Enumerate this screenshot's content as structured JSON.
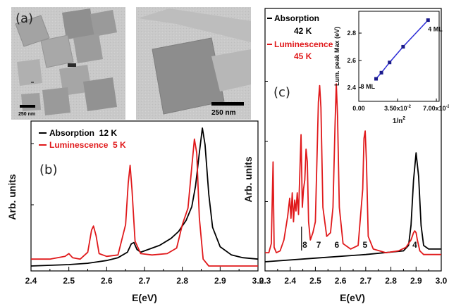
{
  "panel_a": {
    "label": "(a)",
    "scale_left": "250 nm",
    "scale_right": "250 nm"
  },
  "chart_data": [
    {
      "id": "b",
      "type": "line",
      "panel_label": "(b)",
      "xlabel": "E(eV)",
      "ylabel": "Arb. units",
      "xlim": [
        2.4,
        3.0
      ],
      "xticks": [
        "2.4",
        "2.5",
        "2.6",
        "2.7",
        "2.8",
        "2.9",
        "3.0"
      ],
      "series": [
        {
          "name": "Absorption  12 K",
          "color": "#000000",
          "x": [
            2.4,
            2.5,
            2.55,
            2.6,
            2.63,
            2.655,
            2.665,
            2.672,
            2.68,
            2.69,
            2.71,
            2.74,
            2.77,
            2.79,
            2.81,
            2.825,
            2.835,
            2.845,
            2.853,
            2.86,
            2.87,
            2.88,
            2.9,
            2.93,
            2.96,
            3.0
          ],
          "y": [
            0.0,
            0.01,
            0.02,
            0.04,
            0.06,
            0.1,
            0.16,
            0.17,
            0.12,
            0.1,
            0.12,
            0.15,
            0.2,
            0.25,
            0.33,
            0.43,
            0.58,
            0.82,
            1.0,
            0.88,
            0.52,
            0.28,
            0.14,
            0.08,
            0.06,
            0.05
          ]
        },
        {
          "name": "Luminescence  5 K",
          "color": "#e0191b",
          "x": [
            2.4,
            2.45,
            2.49,
            2.5,
            2.51,
            2.53,
            2.55,
            2.56,
            2.565,
            2.572,
            2.58,
            2.6,
            2.63,
            2.65,
            2.657,
            2.662,
            2.667,
            2.675,
            2.69,
            2.72,
            2.76,
            2.785,
            2.8,
            2.815,
            2.825,
            2.832,
            2.838,
            2.845,
            2.855,
            2.87,
            2.9,
            3.0
          ],
          "y": [
            0.05,
            0.05,
            0.07,
            0.09,
            0.06,
            0.05,
            0.1,
            0.26,
            0.29,
            0.22,
            0.09,
            0.07,
            0.08,
            0.3,
            0.6,
            0.73,
            0.55,
            0.18,
            0.09,
            0.08,
            0.09,
            0.13,
            0.3,
            0.42,
            0.72,
            0.92,
            0.82,
            0.35,
            0.05,
            0.0,
            0.0,
            0.0
          ]
        }
      ]
    },
    {
      "id": "c",
      "type": "line",
      "panel_label": "(c)",
      "xlabel": "E(eV)",
      "ylabel": "Arb. units",
      "xlim": [
        2.3,
        3.0
      ],
      "xticks": [
        "2.3",
        "2.4",
        "2.5",
        "2.6",
        "2.7",
        "2.8",
        "2.9",
        "3.0"
      ],
      "legend": [
        {
          "name": "Absorption",
          "temp": "42 K",
          "color": "#000000"
        },
        {
          "name": "Luminescence",
          "temp": "45 K",
          "color": "#e0191b"
        }
      ],
      "series": [
        {
          "name": "Absorption",
          "color": "#000000",
          "x": [
            2.3,
            2.5,
            2.7,
            2.85,
            2.87,
            2.88,
            2.89,
            2.9,
            2.91,
            2.92,
            2.93,
            2.95,
            3.0
          ],
          "y": [
            0.0,
            0.02,
            0.04,
            0.06,
            0.09,
            0.2,
            0.45,
            0.6,
            0.47,
            0.2,
            0.09,
            0.07,
            0.07
          ]
        },
        {
          "name": "Luminescence",
          "color": "#e0191b",
          "x": [
            2.3,
            2.315,
            2.325,
            2.332,
            2.336,
            2.345,
            2.36,
            2.375,
            2.39,
            2.398,
            2.403,
            2.408,
            2.413,
            2.418,
            2.423,
            2.428,
            2.433,
            2.438,
            2.443,
            2.448,
            2.453,
            2.458,
            2.463,
            2.468,
            2.473,
            2.48,
            2.49,
            2.5,
            2.507,
            2.512,
            2.517,
            2.522,
            2.53,
            2.545,
            2.56,
            2.57,
            2.578,
            2.583,
            2.588,
            2.595,
            2.61,
            2.64,
            2.67,
            2.688,
            2.693,
            2.698,
            2.703,
            2.71,
            2.73,
            2.78,
            2.83,
            2.86,
            2.88,
            2.89,
            2.895,
            2.9,
            2.905,
            2.915,
            2.93,
            2.96,
            3.0
          ],
          "y": [
            0.05,
            0.05,
            0.1,
            0.55,
            0.08,
            0.05,
            0.06,
            0.12,
            0.25,
            0.35,
            0.24,
            0.38,
            0.22,
            0.34,
            0.28,
            0.38,
            0.26,
            0.48,
            0.7,
            0.3,
            0.4,
            0.45,
            0.62,
            0.55,
            0.22,
            0.12,
            0.16,
            0.22,
            0.6,
            0.88,
            0.97,
            0.85,
            0.3,
            0.14,
            0.16,
            0.3,
            0.75,
            0.98,
            0.8,
            0.3,
            0.1,
            0.07,
            0.09,
            0.4,
            0.68,
            0.72,
            0.55,
            0.14,
            0.07,
            0.05,
            0.06,
            0.08,
            0.12,
            0.16,
            0.17,
            0.16,
            0.12,
            0.06,
            0.04,
            0.04,
            0.04
          ]
        }
      ],
      "peak_labels": [
        {
          "text": "8",
          "x": 2.458
        },
        {
          "text": "7",
          "x": 2.513
        },
        {
          "text": "6",
          "x": 2.585
        },
        {
          "text": "5",
          "x": 2.697
        },
        {
          "text": "4",
          "x": 2.895
        }
      ],
      "marker_line_x": 2.445
    },
    {
      "id": "c-inset",
      "type": "line",
      "xlabel": "1/n",
      "xlabel_sup": "2",
      "ylabel": "Lum. peak Max (eV)",
      "xlim": [
        0,
        0.0725
      ],
      "ylim": [
        2.3,
        2.96
      ],
      "xticks": [
        {
          "value": 0,
          "label": "0.00"
        },
        {
          "value": 0.035,
          "label": "3.50x10",
          "exp": "-2"
        },
        {
          "value": 0.07,
          "label": "7.00x10",
          "exp": "-2"
        }
      ],
      "yticks": [
        2.4,
        2.6,
        2.8
      ],
      "series": [
        {
          "name": "Lum. peak Max",
          "color": "#2a2ad6",
          "x": [
            0.0156,
            0.0204,
            0.0278,
            0.04,
            0.0625
          ],
          "y": [
            2.465,
            2.51,
            2.585,
            2.7,
            2.895
          ]
        }
      ],
      "annotations": [
        {
          "text": "8 ML",
          "x": 0.0156,
          "y": 2.465
        },
        {
          "text": "4 ML",
          "x": 0.0625,
          "y": 2.895
        }
      ]
    }
  ]
}
